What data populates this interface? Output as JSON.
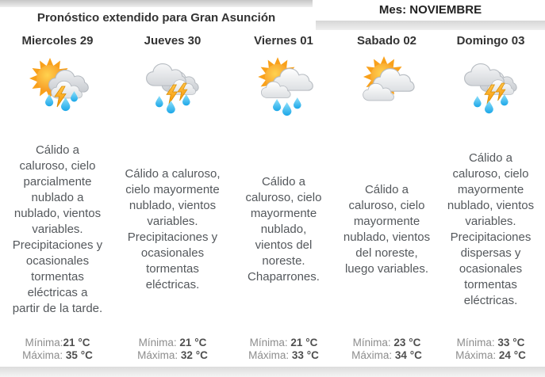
{
  "header": {
    "title": "Pronóstico extendido para Gran Asunción",
    "month_label": "Mes: NOVIEMBRE"
  },
  "colors": {
    "sun": "#F9A11B",
    "lightning": "#F7A11E",
    "rain_drop": "#2FB3EA",
    "cloud_shadow": "#C8CCD1",
    "header_shade": "#D6D6D6",
    "title_text": "#333333",
    "description_text": "#54585C",
    "temp_label": "#8D8D8D",
    "temp_value": "#4F4F4F"
  },
  "days": [
    {
      "name": "Miercoles 29",
      "icon": "sun-clouds-lightning-rain",
      "description": "Cálido a caluroso, cielo parcialmente nublado a nublado, vientos variables. Precipitaciones y ocasionales tormentas eléctricas a partir de la tarde.",
      "min_label": "Mínima:",
      "min_value": "21 °C",
      "max_label": "Máxima: ",
      "max_value": "35 °C"
    },
    {
      "name": "Jueves 30",
      "icon": "clouds-lightning-rain",
      "description": "Cálido a caluroso, cielo mayormente nublado, vientos variables. Precipitaciones y ocasionales tormentas eléctricas.",
      "min_label": "Mínima: ",
      "min_value": "21 °C",
      "max_label": "Máxima: ",
      "max_value": "32 °C"
    },
    {
      "name": "Viernes 01",
      "icon": "sun-clouds-rain",
      "description": "Cálido a caluroso, cielo mayormente nublado, vientos del noreste. Chaparrones.",
      "min_label": "Mínima: ",
      "min_value": "21 °C",
      "max_label": "Máxima: ",
      "max_value": "33 °C"
    },
    {
      "name": "Sabado 02",
      "icon": "sun-clouds",
      "description": "Cálido a caluroso, cielo mayormente nublado, vientos del noreste, luego variables.",
      "min_label": "Mínima: ",
      "min_value": "23 °C",
      "max_label": "Máxima: ",
      "max_value": "34 °C"
    },
    {
      "name": "Domingo 03",
      "icon": "clouds-lightning-rain",
      "description": "Cálido a caluroso, cielo mayormente nublado, vientos variables. Precipitaciones dispersas y ocasionales tormentas eléctricas.",
      "min_label": "Mínima: ",
      "min_value": "33 °C",
      "max_label": "Máxima: ",
      "max_value": "24 °C"
    }
  ]
}
